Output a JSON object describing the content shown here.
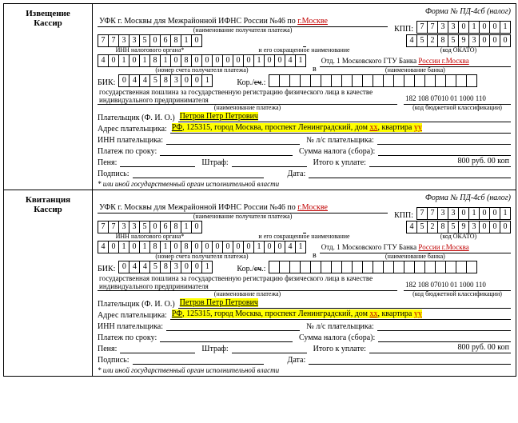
{
  "form_no": "Форма № ПД-4сб (налог)",
  "sections": [
    {
      "title1": "Извещение",
      "title2": "Кассир"
    },
    {
      "title1": "Квитанция",
      "title2": "Кассир"
    }
  ],
  "recipient_prefix": "УФК г. Москвы для Межрайонной ИФНС России №46 по ",
  "recipient_city": "г.Москве",
  "recipient_sub": "(наименование получателя платежа)",
  "kpp_label": "КПП:",
  "kpp": [
    "7",
    "7",
    "3",
    "3",
    "0",
    "1",
    "0",
    "0",
    "1"
  ],
  "inn_label": "ИНН налогового органа*",
  "inn_sub": "и его сокращенное наименование",
  "inn": [
    "7",
    "7",
    "3",
    "3",
    "5",
    "0",
    "6",
    "8",
    "1",
    "0"
  ],
  "okato": [
    "4",
    "5",
    "2",
    "8",
    "5",
    "9",
    "3",
    "0",
    "0",
    "0"
  ],
  "okato_sub": "(код ОКАТО)",
  "acct": [
    "4",
    "0",
    "1",
    "0",
    "1",
    "8",
    "1",
    "0",
    "8",
    "0",
    "0",
    "0",
    "0",
    "0",
    "0",
    "1",
    "0",
    "0",
    "4",
    "1"
  ],
  "acct_sub": "(номер счета получателя платежа)",
  "in_label": "в",
  "bank_prefix": "Отд. 1 Московского ГТУ Банка ",
  "bank_russia": "России г.Москва",
  "bank_sub": "(наименование банка)",
  "bik_label": "БИК:",
  "bik": [
    "0",
    "4",
    "4",
    "5",
    "8",
    "3",
    "0",
    "0",
    "1"
  ],
  "kor_label": "Кор./сч.:",
  "kor": [
    "",
    "",
    "",
    "",
    "",
    "",
    "",
    "",
    "",
    "",
    "",
    "",
    "",
    "",
    "",
    "",
    "",
    "",
    "",
    ""
  ],
  "purpose1": "государственная пошлина за государственную регистрацию физического лица в качестве индивидуального предпринимателя",
  "purpose_sub": "(наименование платежа)",
  "kbk": "182 108 07010 01 1000 110",
  "kbk_sub": "(код бюджетной классификации)",
  "payer_label": "Плательщик (Ф. И. О.)",
  "payer_name": "Петров Петр Петрович",
  "addr_label": "Адрес плательщика:",
  "addr_rf": "РФ",
  "addr_mid": ", 125315, город Москва, проспект Ленинградский, дом ",
  "addr_xx": "xx",
  "addr_kv": ", квартира ",
  "addr_yy": "yy",
  "inn_payer_label": "ИНН плательщика:",
  "ls_label": "№ л/с плательщика:",
  "srok_label": "Платеж по сроку:",
  "tax_label": "Сумма налога (сбора):",
  "penya_label": "Пеня:",
  "shtraf_label": "Штраф:",
  "itogo_label": "Итого к уплате:",
  "itogo_val": "800 руб. 00 коп",
  "sign_label": "Подпись:",
  "date_label": "Дата:",
  "footnote": "* или иной государственный орган исполнительной власти",
  "strike": "сч"
}
